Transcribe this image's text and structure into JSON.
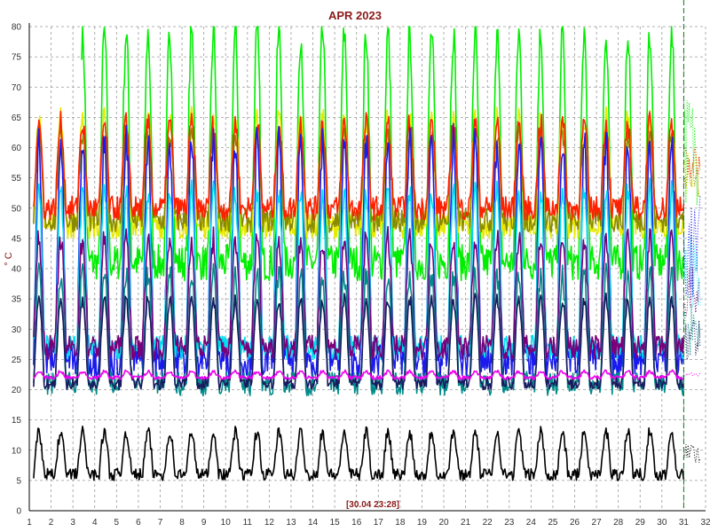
{
  "chart_data": {
    "type": "line",
    "title": "APR 2023",
    "ylabel": "° C",
    "timestamp": "[30.04 23:28]",
    "x_ticks": [
      "1",
      "2",
      "3",
      "4",
      "5",
      "6",
      "7",
      "8",
      "9",
      "10",
      "11",
      "12",
      "13",
      "14",
      "15",
      "16",
      "17",
      "18",
      "19",
      "20",
      "21",
      "22",
      "23",
      "24",
      "25",
      "26",
      "27",
      "28",
      "29",
      "30",
      "31",
      "32"
    ],
    "y_ticks": [
      "0",
      "5",
      "10",
      "15",
      "20",
      "25",
      "30",
      "35",
      "40",
      "45",
      "50",
      "55",
      "60",
      "65",
      "70",
      "75",
      "80"
    ],
    "xlim": [
      1,
      32
    ],
    "ylim": [
      0,
      80
    ],
    "grid": true,
    "cursor_day": 31,
    "series": [
      {
        "color": "#00ee00",
        "base": 60,
        "amp": 19,
        "noise": 3,
        "start": 3.4
      },
      {
        "color": "#e8e800",
        "base": 56,
        "amp": 9,
        "noise": 2,
        "start": 1.2
      },
      {
        "color": "#8a8a00",
        "base": 55,
        "amp": 7,
        "noise": 2,
        "start": 1.2
      },
      {
        "color": "#ff2000",
        "base": 57,
        "amp": 7,
        "noise": 2,
        "start": 1.2
      },
      {
        "color": "#1a1aee",
        "base": 43,
        "amp": 18,
        "noise": 3,
        "start": 1.2
      },
      {
        "color": "#00ddee",
        "base": 40,
        "amp": 13,
        "noise": 2,
        "start": 1.2
      },
      {
        "color": "#7a007a",
        "base": 36,
        "amp": 9,
        "noise": 2,
        "start": 1.2
      },
      {
        "color": "#008b8b",
        "base": 30,
        "amp": 9,
        "noise": 2,
        "start": 1.2
      },
      {
        "color": "#1a1a5e",
        "base": 28,
        "amp": 7,
        "noise": 1,
        "start": 1.2
      },
      {
        "color": "#ee00ee",
        "base": 22.5,
        "amp": 0.5,
        "noise": 0.3,
        "start": 1.2
      },
      {
        "color": "#000000",
        "base": 9.5,
        "amp": 3.5,
        "noise": 1,
        "start": 1.2
      }
    ]
  }
}
